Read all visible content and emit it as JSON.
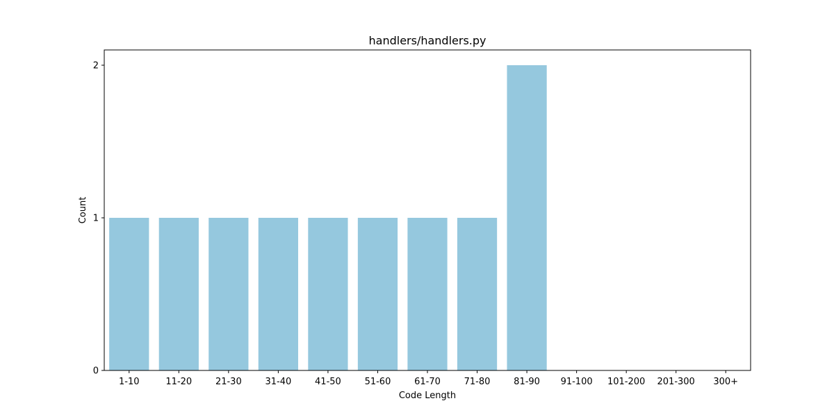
{
  "chart_data": {
    "type": "bar",
    "title": "handlers/handlers.py",
    "xlabel": "Code Length",
    "ylabel": "Count",
    "categories": [
      "1-10",
      "11-20",
      "21-30",
      "31-40",
      "41-50",
      "51-60",
      "61-70",
      "71-80",
      "81-90",
      "91-100",
      "101-200",
      "201-300",
      "300+"
    ],
    "values": [
      1,
      1,
      1,
      1,
      1,
      1,
      1,
      1,
      2,
      0,
      0,
      0,
      0
    ],
    "ylim": [
      0,
      2.1
    ],
    "yticks": [
      0,
      1,
      2
    ],
    "grid": false,
    "legend": "none",
    "bar_color": "#95c8de"
  }
}
